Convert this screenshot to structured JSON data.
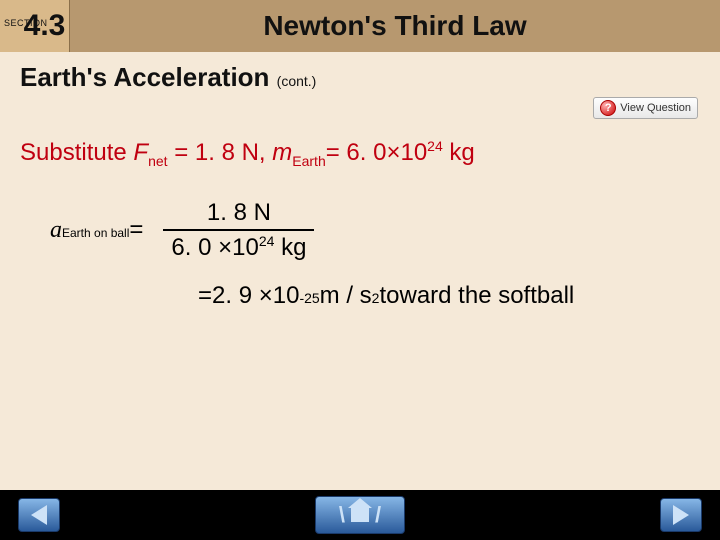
{
  "header": {
    "section_label": "SECTION",
    "section_number": "4.3",
    "title": "Newton's Third Law"
  },
  "subtitle": {
    "main": "Earth's Acceleration",
    "cont": "(cont.)"
  },
  "view_question": {
    "icon_text": "?",
    "label": "View Question"
  },
  "substitution": {
    "prefix": "Substitute ",
    "f_sym": "F",
    "f_sub": "net",
    "f_eq": " = 1. 8 N, ",
    "m_sym": "m",
    "m_sub": "Earth",
    "m_eq": "=  6. 0×10",
    "m_sup": "24",
    "m_unit": " kg"
  },
  "equation": {
    "lhs_a": "a",
    "lhs_sub": "Earth on ball",
    "equals": " = ",
    "frac_num": "1. 8  N",
    "frac_den_val": "6. 0 ×10",
    "frac_den_sup": "24",
    "frac_den_unit": " kg",
    "line2_eq": "= ",
    "line2_val": " 2. 9 ×10",
    "line2_sup": "-25",
    "line2_unit": " m / s",
    "line2_sq": "2",
    "line2_dir": "  toward  the  softball"
  },
  "nav": {
    "slash1": "\\",
    "slash2": "/"
  },
  "colors": {
    "header_bg": "#b7986f",
    "section_bg": "#d9b98a",
    "content_bg": "#f5e9d8",
    "accent_red": "#c00010",
    "nav_blue": "#2a5a9a"
  }
}
